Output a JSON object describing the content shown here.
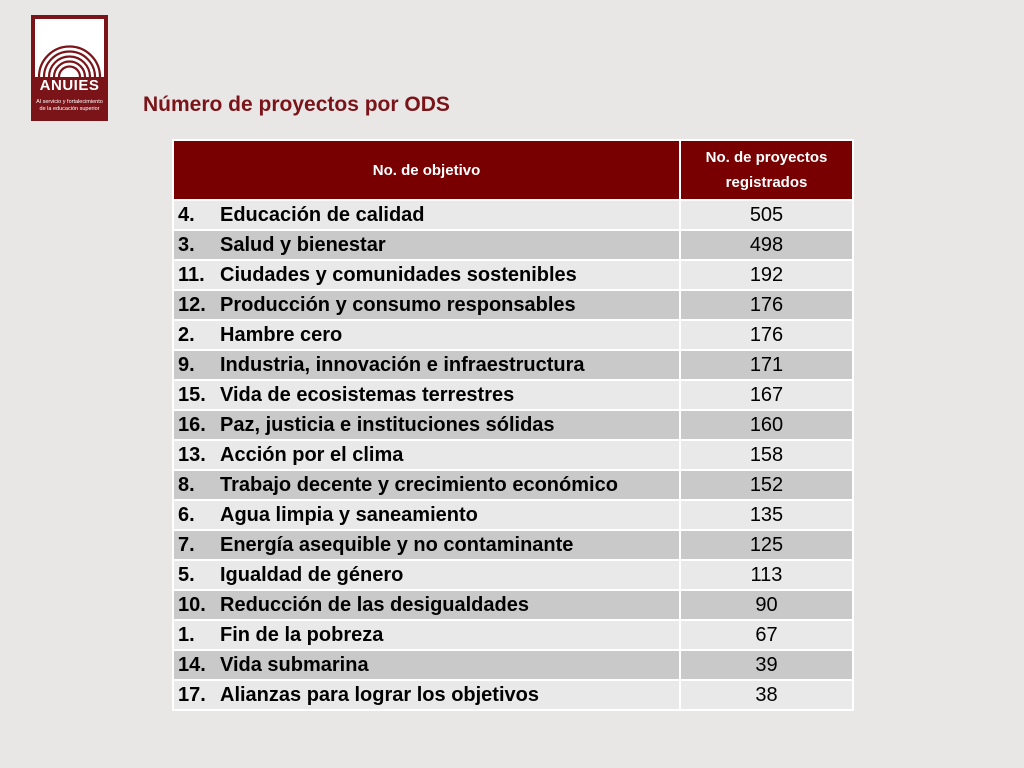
{
  "logo": {
    "name": "ANUIES",
    "tagline_line1": "Al servicio y fortalecimiento",
    "tagline_line2": "de la educación superior",
    "colors": {
      "brand": "#7a1419",
      "text": "#ffffff"
    }
  },
  "title": "Número de proyectos por ODS",
  "table": {
    "headers": {
      "objective": "No. de objetivo",
      "projects": "No. de proyectos registrados"
    },
    "header_color": "#780000",
    "row_colors": {
      "light": "#e9e9e9",
      "dark": "#c9c9c9"
    },
    "rows": [
      {
        "number": "4.",
        "objective": "Educación de calidad",
        "projects": "505"
      },
      {
        "number": "3.",
        "objective": "Salud y bienestar",
        "projects": "498"
      },
      {
        "number": "11.",
        "objective": "Ciudades y comunidades sostenibles",
        "projects": "192"
      },
      {
        "number": "12.",
        "objective": "Producción y consumo responsables",
        "projects": "176"
      },
      {
        "number": "2.",
        "objective": "Hambre cero",
        "projects": "176"
      },
      {
        "number": "9.",
        "objective": "Industria, innovación e infraestructura",
        "projects": "171"
      },
      {
        "number": "15.",
        "objective": "Vida de ecosistemas terrestres",
        "projects": "167"
      },
      {
        "number": "16.",
        "objective": "Paz, justicia e instituciones sólidas",
        "projects": "160"
      },
      {
        "number": "13.",
        "objective": "Acción por el clima",
        "projects": "158"
      },
      {
        "number": "8.",
        "objective": "Trabajo decente y crecimiento económico",
        "projects": "152"
      },
      {
        "number": "6.",
        "objective": "Agua limpia y saneamiento",
        "projects": "135"
      },
      {
        "number": "7.",
        "objective": "Energía asequible y no contaminante",
        "projects": "125"
      },
      {
        "number": "5.",
        "objective": "Igualdad de género",
        "projects": "113"
      },
      {
        "number": "10.",
        "objective": "Reducción de las desigualdades",
        "projects": "90"
      },
      {
        "number": "1.",
        "objective": "Fin de la pobreza",
        "projects": "67"
      },
      {
        "number": "14.",
        "objective": "Vida submarina",
        "projects": "39"
      },
      {
        "number": "17.",
        "objective": "Alianzas para lograr los objetivos",
        "projects": "38"
      }
    ]
  }
}
